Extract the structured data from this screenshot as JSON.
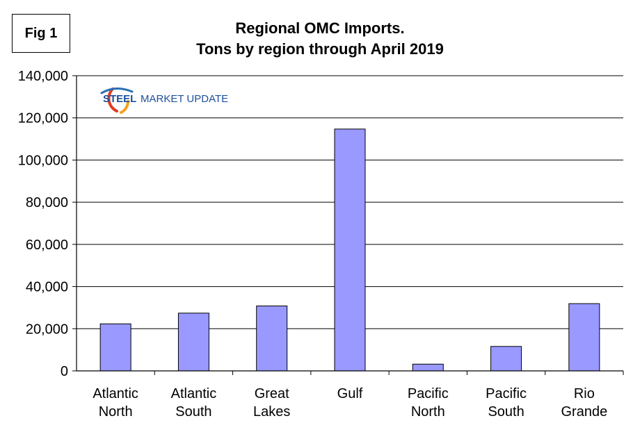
{
  "figure_label": "Fig 1",
  "logo": {
    "text_bold": "STEEL",
    "text_regular": "MARKET UPDATE",
    "colors": {
      "swoosh_red": "#e23a1d",
      "swoosh_orange": "#f4a11d",
      "swoosh_blue": "#2a6fb5",
      "text_blue": "#1c4f9c"
    }
  },
  "chart_data": {
    "type": "bar",
    "title": "Regional OMC Imports.",
    "subtitle": "Tons by region through April 2019",
    "categories": [
      [
        "Atlantic",
        "North"
      ],
      [
        "Atlantic",
        "South"
      ],
      [
        "Great",
        "Lakes"
      ],
      [
        "Gulf"
      ],
      [
        "Pacific",
        "North"
      ],
      [
        "Pacific",
        "South"
      ],
      [
        "Rio",
        "Grande"
      ]
    ],
    "values": [
      22300,
      27400,
      30800,
      114700,
      3200,
      11600,
      31900
    ],
    "ylim": [
      0,
      140000
    ],
    "yticks": [
      0,
      20000,
      40000,
      60000,
      80000,
      100000,
      120000,
      140000
    ],
    "ytick_labels": [
      "0",
      "20,000",
      "40,000",
      "60,000",
      "80,000",
      "100,000",
      "120,000",
      "140,000"
    ],
    "xlabel": "",
    "ylabel": "",
    "grid": true,
    "legend": "none",
    "colors": {
      "bar_fill": "#9999ff",
      "bar_stroke": "#000000",
      "grid": "#000000",
      "axis": "#000000"
    }
  }
}
